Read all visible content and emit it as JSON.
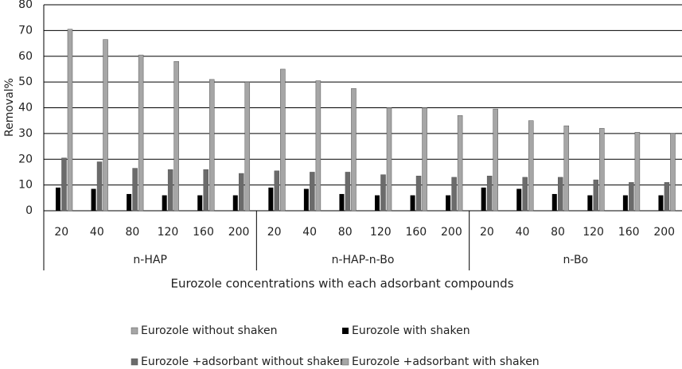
{
  "chart_data": {
    "type": "bar",
    "y_label": "Removal%",
    "x_label": "Eurozole concentrations with each adsorbant compounds",
    "categories": [
      "20",
      "40",
      "80",
      "120",
      "160",
      "200",
      "20",
      "40",
      "80",
      "120",
      "160",
      "200",
      "20",
      "40",
      "80",
      "120",
      "160",
      "200"
    ],
    "groups": [
      "n-HAP",
      "n-HAP-n-Bo",
      "n-Bo"
    ],
    "series": [
      {
        "name": "Eurozole without shaken",
        "color": "#a6a6a6",
        "values": [
          0,
          0,
          0,
          0,
          0,
          0,
          0,
          0,
          0,
          0,
          0,
          0,
          0,
          0,
          0,
          0,
          0,
          0
        ]
      },
      {
        "name": "Eurozole  with shaken",
        "color": "#000000",
        "values": [
          9,
          8.5,
          6.5,
          6,
          6,
          6,
          9,
          8.5,
          6.5,
          6,
          6,
          6,
          9,
          8.5,
          6.5,
          6,
          6,
          6
        ]
      },
      {
        "name": "Eurozole +adsorbant without shaken",
        "color": "#6b6b6b",
        "values": [
          20.5,
          19,
          16.5,
          16,
          16,
          14.5,
          15.5,
          15,
          15,
          14,
          13.5,
          13,
          13.5,
          13,
          13,
          12,
          11,
          11
        ]
      },
      {
        "name": "Eurozole +adsorbant with shaken",
        "color": "#a6a6a6",
        "values": [
          70.5,
          66.5,
          60.5,
          58,
          51,
          50,
          55,
          50.5,
          47.5,
          40,
          40,
          37,
          39.5,
          35,
          33,
          32,
          30.5,
          30
        ]
      }
    ],
    "ylim": [
      0,
      80
    ],
    "yticks": [
      0,
      10,
      20,
      30,
      40,
      50,
      60,
      70,
      80
    ],
    "grid": true,
    "legend": "bottom"
  }
}
